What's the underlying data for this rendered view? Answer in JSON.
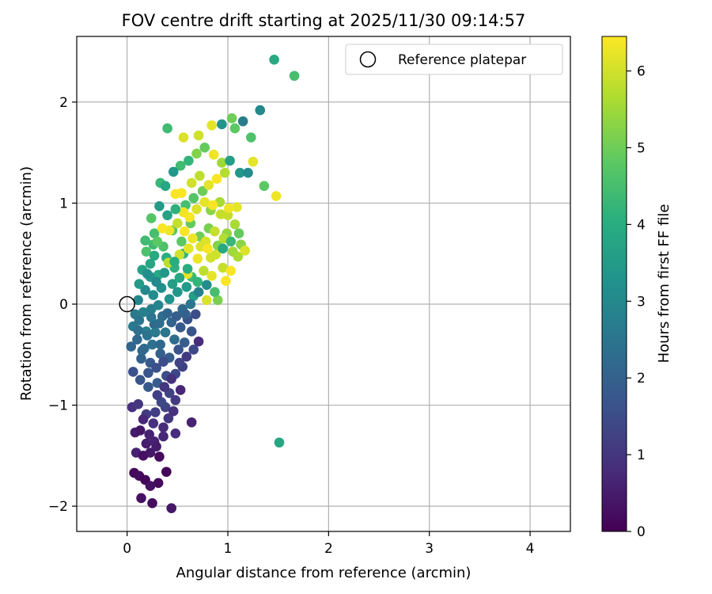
{
  "chart_data": {
    "type": "scatter",
    "title": "FOV centre drift starting at 2025/11/30 09:14:57",
    "xlabel": "Angular distance from reference (arcmin)",
    "ylabel": "Rotation from reference (arcmin)",
    "xlim": [
      -0.5,
      4.4
    ],
    "ylim": [
      -2.25,
      2.65
    ],
    "xticks": [
      0,
      1,
      2,
      3,
      4
    ],
    "yticks": [
      -2,
      -1,
      0,
      1,
      2
    ],
    "xtick_labels": [
      "0",
      "1",
      "2",
      "3",
      "4"
    ],
    "ytick_labels": [
      "−2",
      "−1",
      "0",
      "1",
      "2"
    ],
    "grid": true,
    "legend": {
      "location": "top-right",
      "entries": [
        {
          "label": "Reference platepar",
          "marker": "open-circle"
        }
      ]
    },
    "reference_point": {
      "x": 0,
      "y": 0
    },
    "colorbar": {
      "label": "Hours from first FF file",
      "range": [
        0,
        6.45
      ],
      "ticks": [
        0,
        1,
        2,
        3,
        4,
        5,
        6
      ],
      "tick_labels": [
        "0",
        "1",
        "2",
        "3",
        "4",
        "5",
        "6"
      ],
      "colormap": "viridis"
    },
    "points": [
      [
        0.14,
        -1.92,
        0.3
      ],
      [
        0.25,
        -1.97,
        0.2
      ],
      [
        0.44,
        -2.02,
        0.4
      ],
      [
        0.07,
        -1.67,
        0.1
      ],
      [
        0.12,
        -1.7,
        0.2
      ],
      [
        0.18,
        -1.74,
        0.1
      ],
      [
        0.23,
        -1.8,
        0.3
      ],
      [
        0.31,
        -1.77,
        0.2
      ],
      [
        0.39,
        -1.66,
        0.1
      ],
      [
        0.09,
        -1.47,
        0.6
      ],
      [
        0.16,
        -1.5,
        0.3
      ],
      [
        0.23,
        -1.47,
        0.4
      ],
      [
        0.32,
        -1.51,
        0.2
      ],
      [
        0.08,
        -1.27,
        0.5
      ],
      [
        0.13,
        -1.25,
        0.4
      ],
      [
        0.19,
        -1.38,
        0.5
      ],
      [
        0.27,
        -1.36,
        0.6
      ],
      [
        0.36,
        -1.31,
        0.7
      ],
      [
        0.48,
        -1.28,
        0.8
      ],
      [
        0.64,
        -1.17,
        0.6
      ],
      [
        0.05,
        -1.02,
        0.9
      ],
      [
        0.11,
        -0.99,
        1.0
      ],
      [
        0.19,
        -1.09,
        1.1
      ],
      [
        0.28,
        -1.07,
        1.2
      ],
      [
        0.38,
        -1.02,
        1.3
      ],
      [
        0.46,
        -1.06,
        0.9
      ],
      [
        0.53,
        -0.85,
        0.7
      ],
      [
        0.06,
        -0.67,
        1.6
      ],
      [
        0.13,
        -0.75,
        1.7
      ],
      [
        0.21,
        -0.82,
        1.8
      ],
      [
        0.3,
        -0.78,
        1.9
      ],
      [
        0.39,
        -0.71,
        1.5
      ],
      [
        0.48,
        -0.69,
        1.4
      ],
      [
        0.55,
        -0.62,
        1.2
      ],
      [
        0.04,
        -0.42,
        2.1
      ],
      [
        0.1,
        -0.35,
        2.2
      ],
      [
        0.17,
        -0.44,
        2.3
      ],
      [
        0.25,
        -0.4,
        2.4
      ],
      [
        0.33,
        -0.49,
        2.0
      ],
      [
        0.42,
        -0.53,
        1.9
      ],
      [
        0.51,
        -0.45,
        1.7
      ],
      [
        0.71,
        -0.37,
        0.8
      ],
      [
        0.06,
        -0.22,
        2.6
      ],
      [
        0.12,
        -0.16,
        2.5
      ],
      [
        0.19,
        -0.27,
        2.7
      ],
      [
        0.27,
        -0.2,
        2.2
      ],
      [
        0.35,
        -0.12,
        2.3
      ],
      [
        0.44,
        -0.18,
        2.1
      ],
      [
        0.53,
        -0.23,
        1.8
      ],
      [
        0.6,
        -0.15,
        1.6
      ],
      [
        0.68,
        -0.1,
        1.5
      ],
      [
        0.11,
        0.04,
        2.9
      ],
      [
        0.18,
        0.14,
        3.0
      ],
      [
        0.26,
        0.09,
        3.1
      ],
      [
        0.34,
        0.16,
        3.2
      ],
      [
        0.42,
        0.05,
        3.3
      ],
      [
        0.5,
        0.12,
        3.4
      ],
      [
        0.59,
        0.17,
        3.5
      ],
      [
        0.66,
        0.08,
        3.6
      ],
      [
        0.15,
        0.34,
        3.7
      ],
      [
        0.23,
        0.4,
        3.8
      ],
      [
        0.31,
        0.29,
        3.9
      ],
      [
        0.39,
        0.46,
        4.0
      ],
      [
        0.47,
        0.36,
        4.1
      ],
      [
        0.56,
        0.5,
        4.2
      ],
      [
        0.64,
        0.27,
        4.3
      ],
      [
        0.18,
        0.63,
        4.4
      ],
      [
        0.27,
        0.7,
        4.5
      ],
      [
        0.36,
        0.57,
        4.6
      ],
      [
        0.45,
        0.73,
        4.7
      ],
      [
        0.54,
        0.62,
        4.8
      ],
      [
        0.63,
        0.8,
        4.9
      ],
      [
        0.72,
        0.67,
        5.0
      ],
      [
        0.81,
        0.75,
        5.1
      ],
      [
        0.9,
        0.58,
        5.2
      ],
      [
        0.99,
        0.7,
        5.4
      ],
      [
        1.07,
        0.79,
        5.6
      ],
      [
        0.41,
        0.41,
        5.8
      ],
      [
        0.52,
        0.49,
        6.0
      ],
      [
        0.61,
        0.55,
        6.2
      ],
      [
        0.7,
        0.45,
        6.3
      ],
      [
        0.78,
        0.62,
        6.1
      ],
      [
        0.87,
        0.72,
        5.9
      ],
      [
        0.96,
        0.65,
        5.7
      ],
      [
        1.05,
        0.52,
        5.5
      ],
      [
        1.13,
        0.59,
        5.3
      ],
      [
        0.58,
        0.98,
        4.5
      ],
      [
        0.66,
        1.05,
        4.7
      ],
      [
        0.75,
        1.12,
        5.0
      ],
      [
        0.83,
        0.93,
        5.3
      ],
      [
        0.92,
        1.01,
        5.6
      ],
      [
        1.0,
        0.88,
        5.9
      ],
      [
        1.09,
        0.96,
        6.2
      ],
      [
        0.48,
        1.09,
        6.4
      ],
      [
        0.56,
        0.91,
        6.3
      ],
      [
        0.64,
        1.2,
        6.0
      ],
      [
        0.72,
        1.27,
        5.8
      ],
      [
        0.81,
        1.18,
        6.2
      ],
      [
        0.89,
        1.24,
        6.4
      ],
      [
        0.97,
        1.3,
        5.7
      ],
      [
        1.12,
        1.3,
        3.4
      ],
      [
        1.2,
        1.3,
        3.1
      ],
      [
        0.53,
        1.37,
        4.4
      ],
      [
        0.61,
        1.42,
        4.2
      ],
      [
        0.69,
        1.49,
        5.2
      ],
      [
        0.77,
        1.55,
        4.9
      ],
      [
        0.86,
        1.48,
        6.3
      ],
      [
        0.94,
        1.4,
        5.5
      ],
      [
        1.02,
        1.42,
        3.6
      ],
      [
        1.25,
        1.41,
        6.2
      ],
      [
        0.56,
        1.65,
        6.1
      ],
      [
        0.71,
        1.67,
        6.0
      ],
      [
        0.84,
        1.77,
        6.2
      ],
      [
        0.94,
        1.78,
        3.3
      ],
      [
        1.04,
        1.84,
        5.0
      ],
      [
        1.07,
        1.74,
        4.8
      ],
      [
        1.15,
        1.81,
        2.7
      ],
      [
        1.23,
        1.65,
        4.6
      ],
      [
        0.4,
        1.74,
        4.4
      ],
      [
        1.32,
        1.92,
        3.0
      ],
      [
        1.46,
        2.42,
        3.9
      ],
      [
        1.66,
        2.26,
        4.5
      ],
      [
        1.36,
        1.17,
        4.8
      ],
      [
        1.48,
        1.07,
        6.3
      ],
      [
        1.51,
        -1.37,
        3.8
      ],
      [
        0.79,
        0.04,
        6.1
      ],
      [
        0.9,
        0.04,
        5.1
      ],
      [
        0.98,
        0.23,
        6.4
      ],
      [
        0.6,
        0.3,
        6.2
      ],
      [
        0.47,
        0.42,
        4.0
      ],
      [
        0.83,
        0.46,
        6.0
      ],
      [
        0.42,
        0.73,
        6.3
      ],
      [
        0.35,
        0.75,
        6.4
      ],
      [
        0.24,
        0.85,
        4.7
      ],
      [
        0.33,
        1.2,
        4.3
      ],
      [
        0.46,
        1.31,
        3.4
      ],
      [
        0.38,
        1.17,
        3.8
      ],
      [
        0.54,
        1.1,
        6.4
      ],
      [
        0.62,
        0.86,
        6.4
      ],
      [
        0.69,
        0.94,
        6.1
      ],
      [
        0.77,
        1.01,
        6.2
      ],
      [
        0.85,
        0.98,
        6.4
      ],
      [
        0.93,
        0.89,
        5.9
      ],
      [
        1.01,
        0.95,
        6.3
      ],
      [
        0.26,
        0.59,
        4.4
      ],
      [
        0.19,
        0.52,
        4.6
      ],
      [
        0.12,
        0.2,
        3.5
      ],
      [
        0.23,
        0.27,
        3.3
      ],
      [
        0.3,
        0.62,
        4.8
      ],
      [
        0.5,
        0.8,
        5.9
      ],
      [
        0.57,
        0.72,
        6.4
      ],
      [
        0.65,
        0.65,
        6.3
      ],
      [
        0.73,
        0.57,
        6.1
      ],
      [
        0.8,
        0.55,
        6.4
      ],
      [
        0.88,
        0.49,
        6.0
      ],
      [
        0.95,
        0.36,
        5.9
      ],
      [
        1.03,
        0.33,
        6.4
      ],
      [
        1.1,
        0.47,
        5.6
      ],
      [
        1.17,
        0.53,
        6.1
      ],
      [
        0.23,
        -0.58,
        1.8
      ],
      [
        0.29,
        -0.63,
        1.6
      ],
      [
        0.36,
        -0.57,
        1.5
      ],
      [
        0.42,
        -0.88,
        1.3
      ],
      [
        0.48,
        -0.95,
        1.1
      ],
      [
        0.34,
        -0.97,
        1.4
      ],
      [
        0.26,
        -1.18,
        0.9
      ],
      [
        0.16,
        -1.14,
        0.7
      ],
      [
        0.22,
        -1.29,
        0.6
      ],
      [
        0.29,
        -1.41,
        0.5
      ],
      [
        0.36,
        -1.22,
        0.8
      ],
      [
        0.41,
        -1.13,
        1.0
      ],
      [
        0.14,
        -0.54,
        2.0
      ],
      [
        0.2,
        -0.31,
        2.4
      ],
      [
        0.28,
        -0.28,
        2.6
      ],
      [
        0.16,
        -0.08,
        2.8
      ],
      [
        0.24,
        -0.05,
        2.7
      ],
      [
        0.31,
        -0.01,
        2.9
      ],
      [
        0.38,
        -0.28,
        2.5
      ],
      [
        0.47,
        -0.35,
        2.3
      ],
      [
        0.57,
        -0.38,
        1.9
      ],
      [
        0.64,
        -0.27,
        1.7
      ],
      [
        0.08,
        -0.1,
        2.6
      ],
      [
        0.2,
        0.3,
        3.2
      ],
      [
        0.29,
        0.22,
        3.0
      ],
      [
        0.37,
        0.31,
        3.4
      ],
      [
        0.45,
        0.2,
        3.6
      ],
      [
        0.52,
        0.26,
        3.8
      ],
      [
        0.6,
        0.35,
        4.0
      ],
      [
        0.7,
        0.22,
        4.2
      ],
      [
        0.76,
        0.33,
        5.8
      ],
      [
        0.84,
        0.28,
        6.2
      ],
      [
        0.33,
        -0.4,
        2.2
      ],
      [
        0.21,
        -0.68,
        1.7
      ],
      [
        0.3,
        -0.9,
        1.2
      ],
      [
        0.37,
        -0.82,
        1.0
      ],
      [
        0.44,
        -0.74,
        0.9
      ],
      [
        0.52,
        -0.58,
        1.3
      ],
      [
        0.59,
        -0.52,
        1.1
      ],
      [
        0.66,
        -0.45,
        1.4
      ],
      [
        0.55,
        -0.05,
        2.2
      ],
      [
        0.63,
        0.0,
        2.5
      ],
      [
        0.71,
        0.12,
        2.8
      ],
      [
        0.79,
        0.19,
        3.1
      ],
      [
        0.87,
        0.12,
        4.5
      ],
      [
        0.95,
        0.55,
        3.9
      ],
      [
        1.03,
        0.62,
        4.3
      ],
      [
        1.11,
        0.7,
        4.9
      ],
      [
        0.48,
        0.94,
        4.1
      ],
      [
        0.4,
        0.88,
        3.7
      ],
      [
        0.32,
        0.97,
        3.5
      ],
      [
        0.27,
        0.48,
        3.9
      ],
      [
        0.11,
        -0.26,
        2.4
      ],
      [
        0.15,
        -0.46,
        2.2
      ],
      [
        0.24,
        -0.13,
        2.5
      ],
      [
        0.32,
        -0.19,
        2.3
      ],
      [
        0.4,
        -0.09,
        2.1
      ],
      [
        0.49,
        -0.12,
        1.9
      ],
      [
        0.58,
        -0.1,
        2.0
      ]
    ]
  }
}
